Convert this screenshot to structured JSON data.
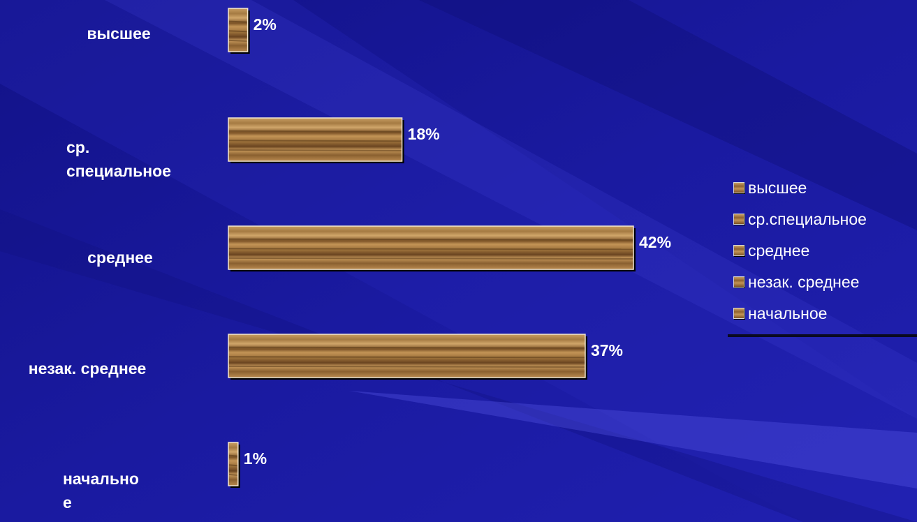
{
  "colors": {
    "background": "#1a1a9c",
    "text": "#ffffff",
    "bar_dark": "#6e4a20",
    "bar_light": "#c89a5e"
  },
  "chart_data": {
    "type": "bar",
    "orientation": "horizontal",
    "title": "",
    "xlabel": "",
    "ylabel": "",
    "xlim": [
      0,
      42
    ],
    "grid": false,
    "legend_position": "right",
    "categories": [
      "высшее",
      "ср. специальное",
      "среднее",
      "незак. среднее",
      "начальное"
    ],
    "category_labels": [
      "высшее",
      "ср. специальное",
      "среднее",
      "незак. среднее",
      "начально е"
    ],
    "values": [
      2,
      18,
      42,
      37,
      1
    ],
    "data_labels": [
      "2%",
      "18%",
      "42%",
      "37%",
      "1%"
    ],
    "legend": [
      "высшее",
      "ср.специальное",
      "среднее",
      "незак. среднее",
      "начальное"
    ]
  }
}
